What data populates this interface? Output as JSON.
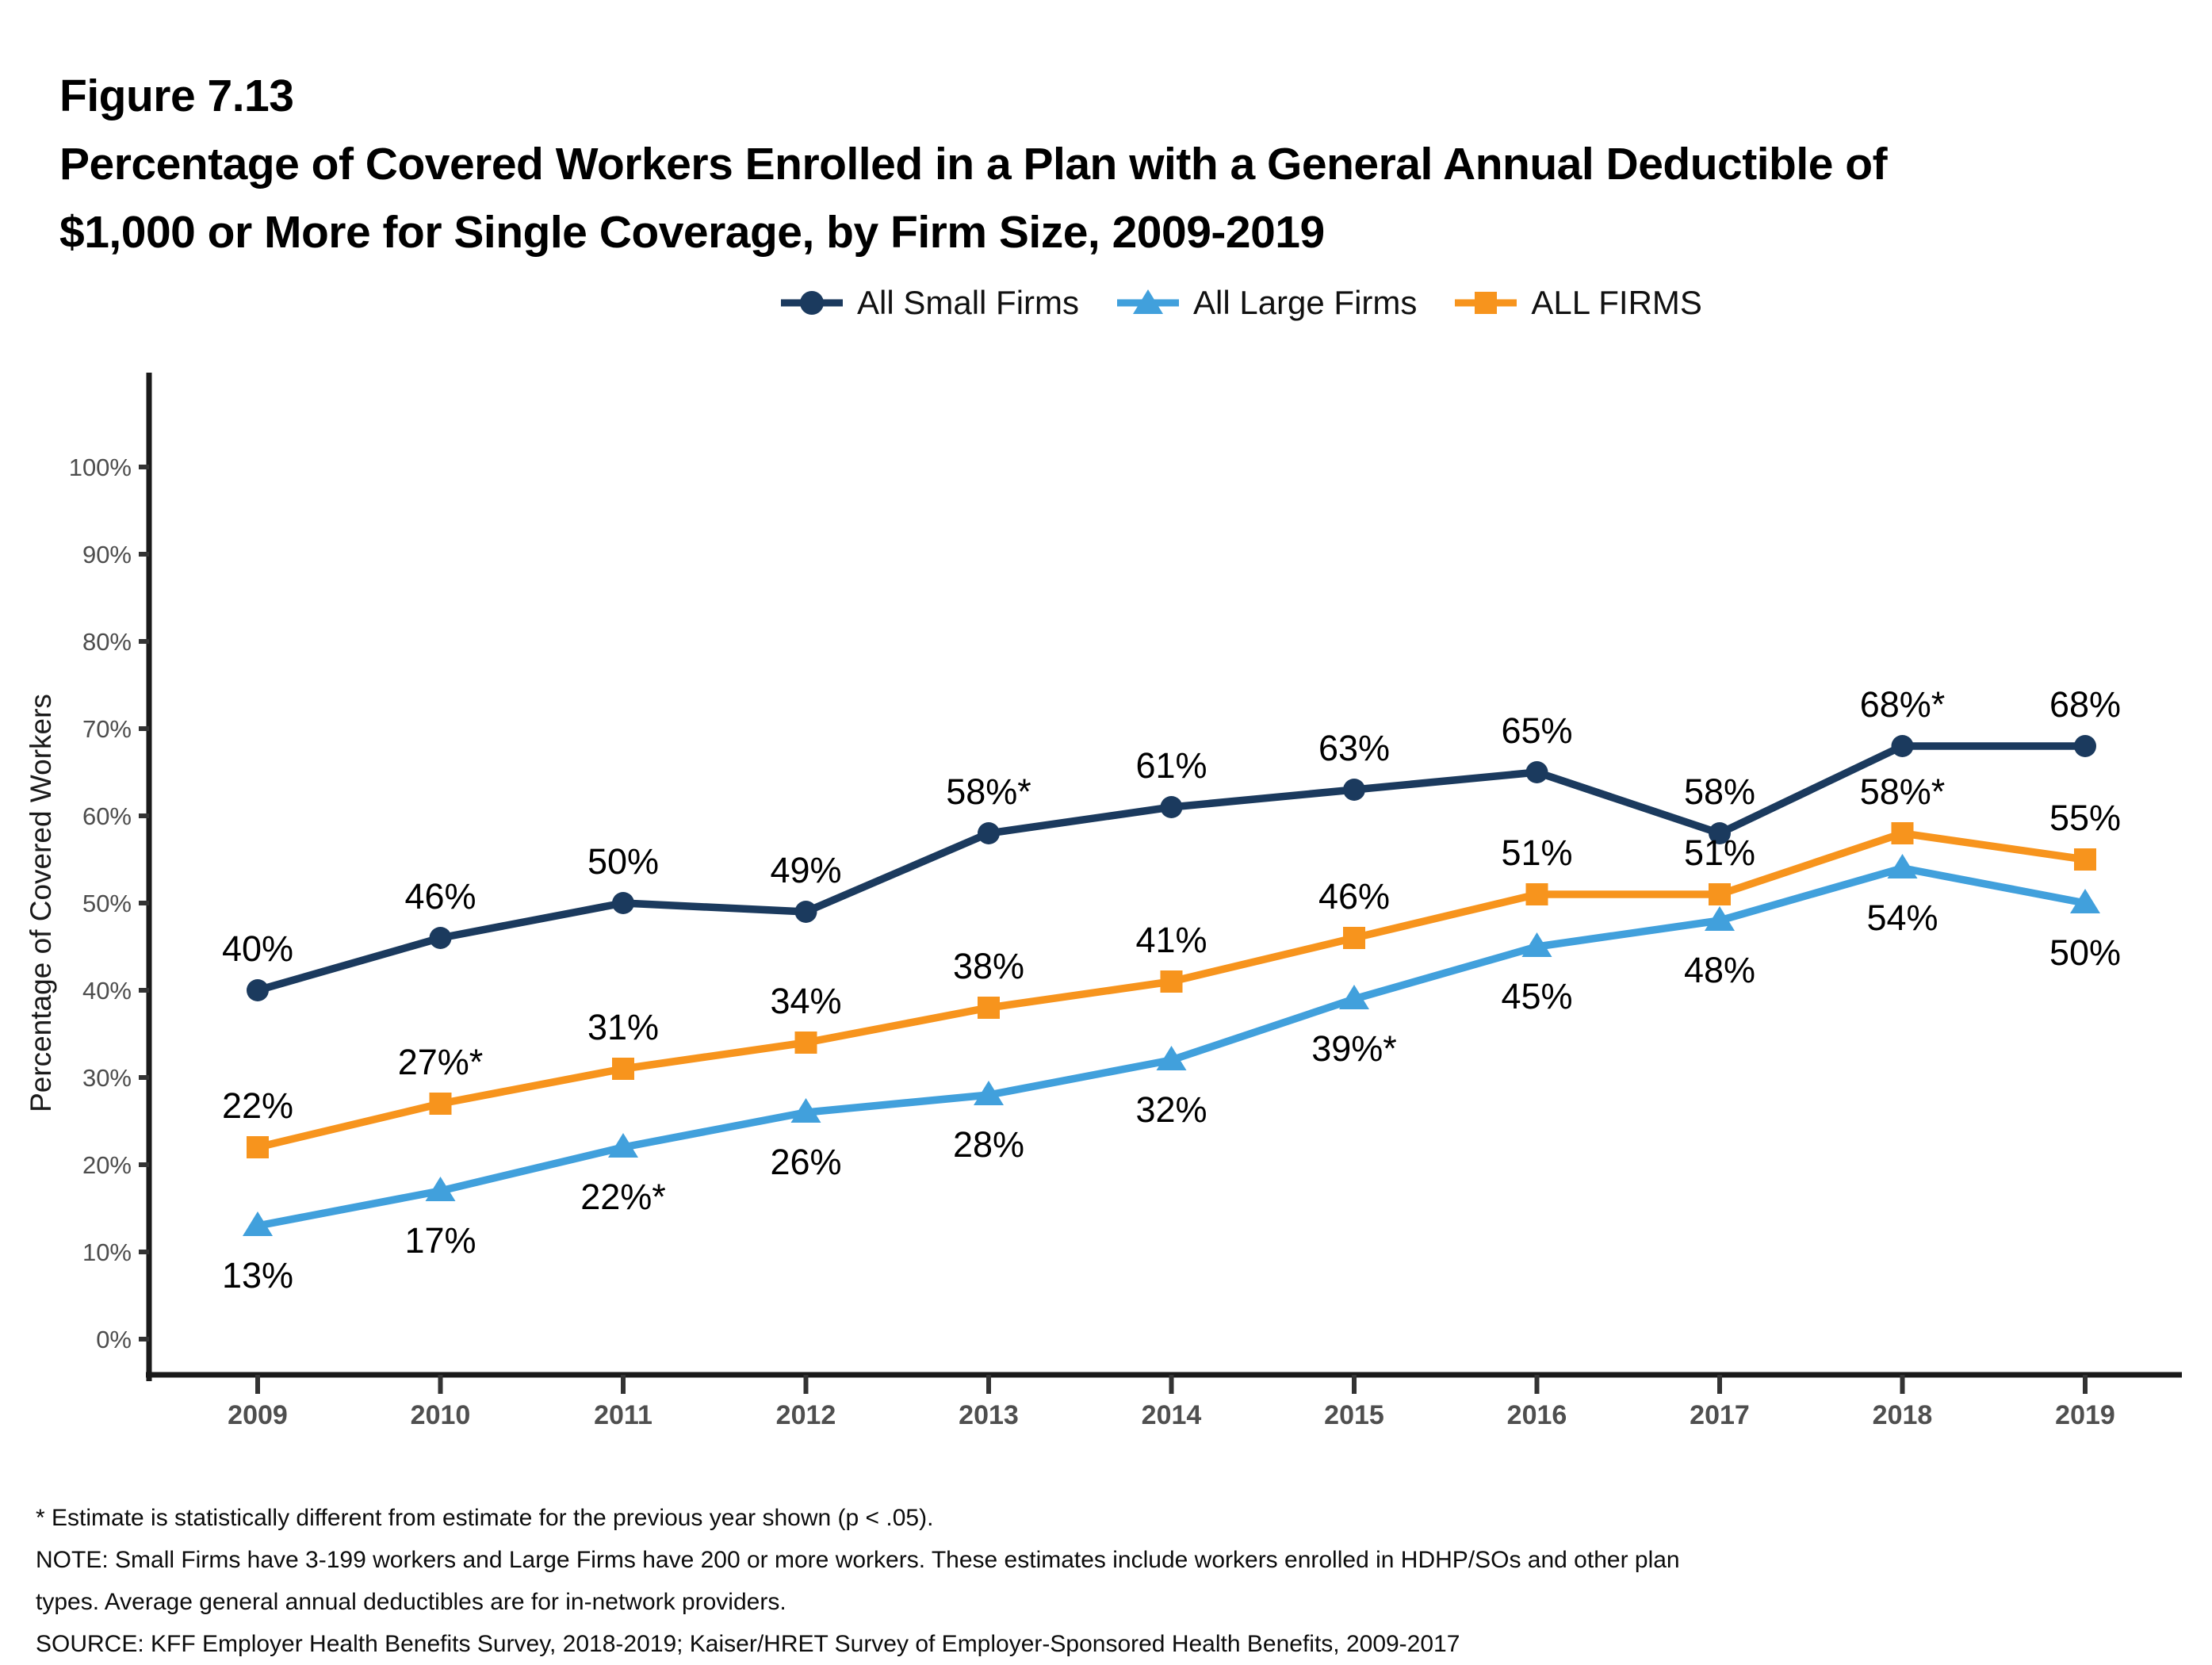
{
  "header": {
    "figure_label": "Figure 7.13",
    "title_line1": "Percentage of Covered Workers Enrolled in a Plan with a General Annual Deductible of",
    "title_line2": "$1,000 or More for Single Coverage, by Firm Size, 2009-2019"
  },
  "colors": {
    "small_firms": "#1B3A5E",
    "large_firms": "#41A0DC",
    "all_firms": "#F7941D",
    "axis": "#1a1a1a",
    "tick_label": "#4d4d4d",
    "x_label": "#4f4f4f"
  },
  "legend": [
    {
      "label": "All Small Firms",
      "color": "#1B3A5E",
      "marker": "circle"
    },
    {
      "label": "All Large Firms",
      "color": "#41A0DC",
      "marker": "triangle"
    },
    {
      "label": "ALL FIRMS",
      "color": "#F7941D",
      "marker": "square"
    }
  ],
  "chart_data": {
    "type": "line",
    "x": [
      "2009",
      "2010",
      "2011",
      "2012",
      "2013",
      "2014",
      "2015",
      "2016",
      "2017",
      "2018",
      "2019"
    ],
    "ylabel": "Percentage of Covered Workers",
    "ylim": [
      0,
      100
    ],
    "ytick_step": 10,
    "yticks": [
      "0%",
      "10%",
      "20%",
      "30%",
      "40%",
      "50%",
      "60%",
      "70%",
      "80%",
      "90%",
      "100%"
    ],
    "grid": false,
    "legend_position": "top",
    "series": [
      {
        "name": "All Small Firms",
        "color": "#1B3A5E",
        "marker": "circle",
        "label_side": "above",
        "values": [
          40,
          46,
          50,
          49,
          58,
          61,
          63,
          65,
          58,
          68,
          68
        ],
        "point_labels": [
          "40%",
          "46%",
          "50%",
          "49%",
          "58%*",
          "61%",
          "63%",
          "65%",
          "58%",
          "68%*",
          "68%"
        ]
      },
      {
        "name": "All Large Firms",
        "color": "#41A0DC",
        "marker": "triangle",
        "label_side": "below",
        "values": [
          13,
          17,
          22,
          26,
          28,
          32,
          39,
          45,
          48,
          54,
          50
        ],
        "point_labels": [
          "13%",
          "17%",
          "22%*",
          "26%",
          "28%",
          "32%",
          "39%*",
          "45%",
          "48%",
          "54%",
          "50%"
        ]
      },
      {
        "name": "ALL FIRMS",
        "color": "#F7941D",
        "marker": "square",
        "label_side": "above",
        "values": [
          22,
          27,
          31,
          34,
          38,
          41,
          46,
          51,
          51,
          58,
          55
        ],
        "point_labels": [
          "22%",
          "27%*",
          "31%",
          "34%",
          "38%",
          "41%",
          "46%",
          "51%",
          "51%",
          "58%*",
          "55%"
        ]
      }
    ]
  },
  "footnotes": [
    "* Estimate is statistically different from estimate for the previous year shown (p < .05).",
    "NOTE: Small Firms have 3-199 workers and Large Firms have 200 or more workers. These estimates include workers enrolled in HDHP/SOs and other plan",
    "types. Average general annual deductibles are for in-network providers.",
    "SOURCE: KFF Employer Health Benefits Survey, 2018-2019; Kaiser/HRET Survey of Employer-Sponsored Health Benefits, 2009-2017"
  ]
}
